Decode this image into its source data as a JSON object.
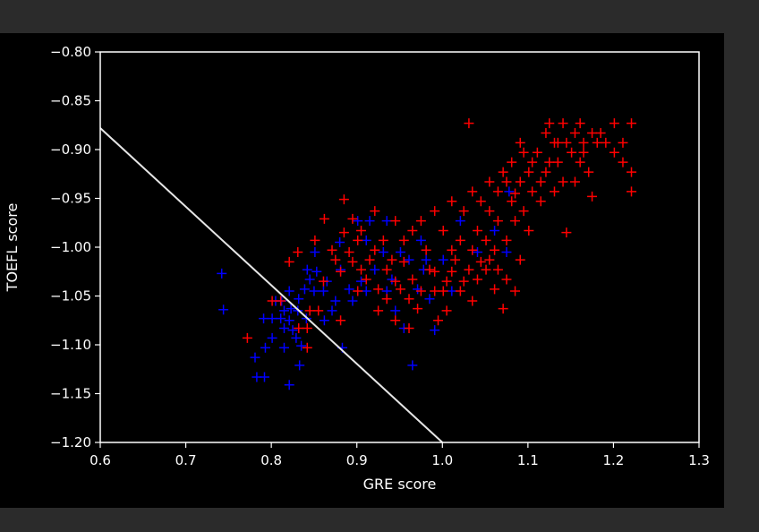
{
  "chart_data": {
    "type": "scatter",
    "title": "",
    "xlabel": "GRE score",
    "ylabel": "TOEFL score",
    "xlim": [
      0.6,
      1.3
    ],
    "ylim": [
      -1.2,
      -0.8
    ],
    "xticks": [
      0.6,
      0.7,
      0.8,
      0.9,
      1.0,
      1.1,
      1.2,
      1.3
    ],
    "yticks": [
      -1.2,
      -1.15,
      -1.1,
      -1.05,
      -1.0,
      -0.95,
      -0.9,
      -0.85,
      -0.8
    ],
    "xtick_labels": [
      "0.6",
      "0.7",
      "0.8",
      "0.9",
      "1.0",
      "1.1",
      "1.2",
      "1.3"
    ],
    "ytick_labels": [
      "−1.20",
      "−1.15",
      "−1.10",
      "−1.05",
      "−1.00",
      "−0.95",
      "−0.90",
      "−0.85",
      "−0.80"
    ],
    "grid": false,
    "legend": "none",
    "marker": "+",
    "colors": {
      "background": "#000000",
      "axes": "#ffffff",
      "text": "#ffffff",
      "line": "#e6e6e6",
      "red": "#ff0000",
      "blue": "#0000ff"
    },
    "decision_line": {
      "x": [
        0.6,
        1.0
      ],
      "y": [
        -0.878,
        -1.2
      ]
    },
    "series": [
      {
        "color": "#0000ff",
        "points": [
          [
            0.742,
            -1.027
          ],
          [
            0.744,
            -1.064
          ],
          [
            0.781,
            -1.113
          ],
          [
            0.783,
            -1.133
          ],
          [
            0.792,
            -1.133
          ],
          [
            0.791,
            -1.073
          ],
          [
            0.793,
            -1.103
          ],
          [
            0.801,
            -1.073
          ],
          [
            0.801,
            -1.093
          ],
          [
            0.805,
            -1.055
          ],
          [
            0.811,
            -1.073
          ],
          [
            0.812,
            -1.055
          ],
          [
            0.815,
            -1.065
          ],
          [
            0.815,
            -1.083
          ],
          [
            0.815,
            -1.103
          ],
          [
            0.821,
            -1.075
          ],
          [
            0.821,
            -1.045
          ],
          [
            0.821,
            -1.141
          ],
          [
            0.823,
            -1.063
          ],
          [
            0.825,
            -1.085
          ],
          [
            0.829,
            -1.093
          ],
          [
            0.831,
            -1.065
          ],
          [
            0.832,
            -1.053
          ],
          [
            0.833,
            -1.121
          ],
          [
            0.835,
            -1.101
          ],
          [
            0.839,
            -1.043
          ],
          [
            0.841,
            -1.073
          ],
          [
            0.842,
            -1.023
          ],
          [
            0.845,
            -1.033
          ],
          [
            0.85,
            -1.045
          ],
          [
            0.851,
            -1.005
          ],
          [
            0.853,
            -1.025
          ],
          [
            0.861,
            -1.045
          ],
          [
            0.862,
            -1.075
          ],
          [
            0.865,
            -1.035
          ],
          [
            0.871,
            -1.065
          ],
          [
            0.875,
            -1.055
          ],
          [
            0.88,
            -0.995
          ],
          [
            0.881,
            -1.023
          ],
          [
            0.883,
            -1.103
          ],
          [
            0.891,
            -1.043
          ],
          [
            0.895,
            -1.055
          ],
          [
            0.901,
            -0.973
          ],
          [
            0.905,
            -1.035
          ],
          [
            0.911,
            -0.993
          ],
          [
            0.911,
            -1.045
          ],
          [
            0.915,
            -0.973
          ],
          [
            0.921,
            -1.023
          ],
          [
            0.931,
            -1.005
          ],
          [
            0.935,
            -0.973
          ],
          [
            0.935,
            -1.045
          ],
          [
            0.941,
            -1.033
          ],
          [
            0.945,
            -1.065
          ],
          [
            0.951,
            -1.005
          ],
          [
            0.955,
            -1.083
          ],
          [
            0.961,
            -1.013
          ],
          [
            0.965,
            -1.121
          ],
          [
            0.971,
            -1.043
          ],
          [
            0.975,
            -0.993
          ],
          [
            0.978,
            -1.023
          ],
          [
            0.981,
            -1.013
          ],
          [
            0.985,
            -1.053
          ],
          [
            0.991,
            -1.085
          ],
          [
            1.001,
            -1.013
          ],
          [
            1.011,
            -1.045
          ],
          [
            1.021,
            -0.973
          ],
          [
            1.041,
            -1.005
          ],
          [
            1.061,
            -0.983
          ],
          [
            1.075,
            -1.005
          ],
          [
            1.078,
            -0.943
          ]
        ]
      },
      {
        "color": "#ff0000",
        "points": [
          [
            0.772,
            -1.093
          ],
          [
            0.801,
            -1.055
          ],
          [
            0.811,
            -1.055
          ],
          [
            0.821,
            -1.015
          ],
          [
            0.831,
            -1.005
          ],
          [
            0.832,
            -1.083
          ],
          [
            0.842,
            -1.083
          ],
          [
            0.842,
            -1.103
          ],
          [
            0.845,
            -1.065
          ],
          [
            0.851,
            -0.993
          ],
          [
            0.855,
            -1.065
          ],
          [
            0.861,
            -1.035
          ],
          [
            0.862,
            -0.971
          ],
          [
            0.871,
            -1.003
          ],
          [
            0.875,
            -1.013
          ],
          [
            0.881,
            -1.025
          ],
          [
            0.881,
            -1.075
          ],
          [
            0.885,
            -0.951
          ],
          [
            0.885,
            -0.985
          ],
          [
            0.891,
            -1.005
          ],
          [
            0.895,
            -0.971
          ],
          [
            0.895,
            -1.015
          ],
          [
            0.901,
            -1.045
          ],
          [
            0.901,
            -0.993
          ],
          [
            0.905,
            -0.983
          ],
          [
            0.905,
            -1.023
          ],
          [
            0.911,
            -1.033
          ],
          [
            0.915,
            -1.013
          ],
          [
            0.921,
            -0.963
          ],
          [
            0.921,
            -1.003
          ],
          [
            0.925,
            -1.043
          ],
          [
            0.925,
            -1.065
          ],
          [
            0.931,
            -0.993
          ],
          [
            0.935,
            -1.023
          ],
          [
            0.935,
            -1.053
          ],
          [
            0.941,
            -1.013
          ],
          [
            0.945,
            -0.973
          ],
          [
            0.945,
            -1.035
          ],
          [
            0.945,
            -1.075
          ],
          [
            0.951,
            -1.043
          ],
          [
            0.955,
            -0.993
          ],
          [
            0.955,
            -1.015
          ],
          [
            0.961,
            -1.053
          ],
          [
            0.961,
            -1.083
          ],
          [
            0.965,
            -0.983
          ],
          [
            0.965,
            -1.033
          ],
          [
            0.971,
            -1.063
          ],
          [
            0.975,
            -0.973
          ],
          [
            0.975,
            -1.045
          ],
          [
            0.981,
            -1.003
          ],
          [
            0.985,
            -1.023
          ],
          [
            0.991,
            -0.963
          ],
          [
            0.991,
            -1.045
          ],
          [
            0.995,
            -1.075
          ],
          [
            1.001,
            -0.983
          ],
          [
            1.005,
            -1.035
          ],
          [
            1.005,
            -1.065
          ],
          [
            1.011,
            -0.953
          ],
          [
            1.011,
            -1.003
          ],
          [
            1.015,
            -1.013
          ],
          [
            1.021,
            -0.993
          ],
          [
            1.021,
            -1.045
          ],
          [
            1.025,
            -0.963
          ],
          [
            1.031,
            -0.873
          ],
          [
            1.031,
            -1.023
          ],
          [
            1.035,
            -0.943
          ],
          [
            1.035,
            -1.055
          ],
          [
            1.041,
            -0.983
          ],
          [
            1.041,
            -1.033
          ],
          [
            1.045,
            -0.953
          ],
          [
            1.051,
            -0.993
          ],
          [
            1.051,
            -1.023
          ],
          [
            1.055,
            -0.933
          ],
          [
            1.055,
            -0.963
          ],
          [
            1.061,
            -1.003
          ],
          [
            1.061,
            -1.043
          ],
          [
            1.065,
            -0.943
          ],
          [
            1.065,
            -0.973
          ],
          [
            1.071,
            -0.923
          ],
          [
            1.071,
            -1.063
          ],
          [
            1.075,
            -0.993
          ],
          [
            1.081,
            -0.953
          ],
          [
            1.081,
            -0.913
          ],
          [
            1.085,
            -0.973
          ],
          [
            1.091,
            -0.893
          ],
          [
            1.091,
            -0.933
          ],
          [
            1.091,
            -1.013
          ],
          [
            1.095,
            -0.963
          ],
          [
            1.101,
            -0.923
          ],
          [
            1.101,
            -0.983
          ],
          [
            1.105,
            -0.943
          ],
          [
            1.111,
            -0.903
          ],
          [
            1.115,
            -0.953
          ],
          [
            1.121,
            -0.883
          ],
          [
            1.121,
            -0.923
          ],
          [
            1.125,
            -0.873
          ],
          [
            1.131,
            -0.893
          ],
          [
            1.131,
            -0.943
          ],
          [
            1.135,
            -0.913
          ],
          [
            1.141,
            -0.873
          ],
          [
            1.141,
            -0.933
          ],
          [
            1.145,
            -0.893
          ],
          [
            1.145,
            -0.985
          ],
          [
            1.151,
            -0.903
          ],
          [
            1.155,
            -0.883
          ],
          [
            1.161,
            -0.873
          ],
          [
            1.161,
            -0.913
          ],
          [
            1.165,
            -0.893
          ],
          [
            1.171,
            -0.923
          ],
          [
            1.175,
            -0.883
          ],
          [
            1.175,
            -0.948
          ],
          [
            1.181,
            -0.893
          ],
          [
            1.191,
            -0.893
          ],
          [
            1.201,
            -0.873
          ],
          [
            1.201,
            -0.903
          ],
          [
            1.211,
            -0.893
          ],
          [
            1.211,
            -0.913
          ],
          [
            1.221,
            -0.873
          ],
          [
            1.221,
            -0.923
          ],
          [
            1.221,
            -0.943
          ],
          [
            1.075,
            -0.933
          ],
          [
            1.085,
            -0.945
          ],
          [
            1.095,
            -0.903
          ],
          [
            1.105,
            -0.913
          ],
          [
            1.115,
            -0.933
          ],
          [
            1.125,
            -0.913
          ],
          [
            1.135,
            -0.893
          ],
          [
            1.155,
            -0.933
          ],
          [
            1.165,
            -0.903
          ],
          [
            1.185,
            -0.883
          ],
          [
            0.991,
            -1.025
          ],
          [
            1.001,
            -1.045
          ],
          [
            1.011,
            -1.025
          ],
          [
            1.025,
            -1.035
          ],
          [
            1.035,
            -1.003
          ],
          [
            1.045,
            -1.015
          ],
          [
            1.055,
            -1.013
          ],
          [
            1.065,
            -1.023
          ],
          [
            1.075,
            -1.033
          ],
          [
            1.085,
            -1.045
          ]
        ]
      }
    ]
  }
}
